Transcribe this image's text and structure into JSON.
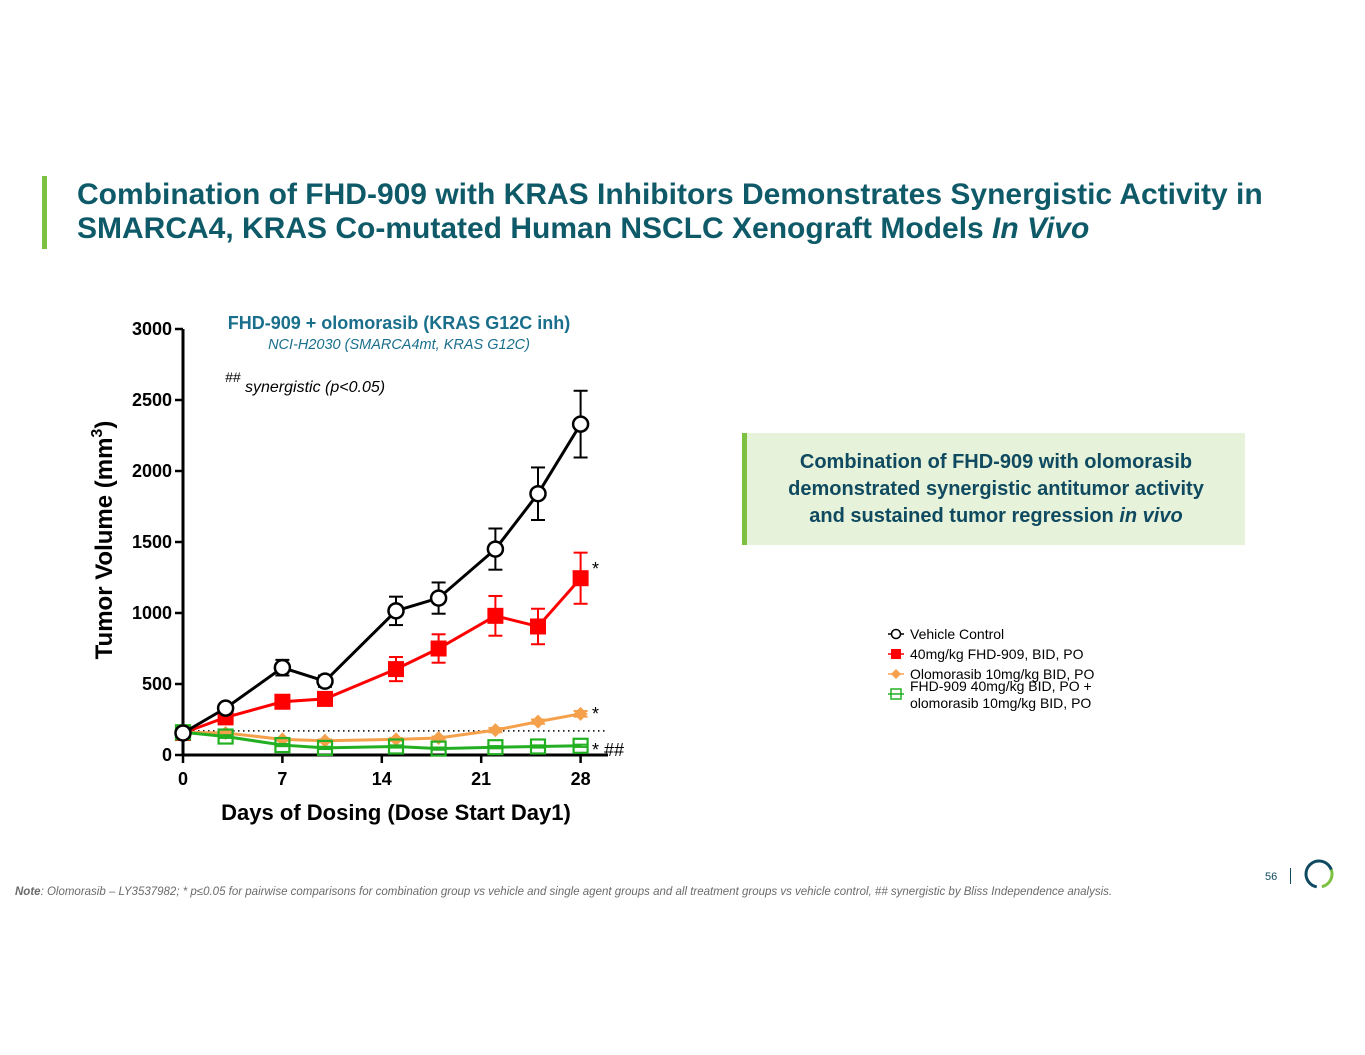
{
  "slide": {
    "title_line1": "Combination of FHD-909 with KRAS Inhibitors Demonstrates Synergistic Activity in",
    "title_line2": "SMARCA4, KRAS Co-mutated Human NSCLC Xenograft Models ",
    "title_line2_italic": "In Vivo",
    "callout_line1": "Combination of FHD-909 with olomorasib",
    "callout_line2": "demonstrated synergistic antitumor activity",
    "callout_line3": "and sustained tumor regression ",
    "callout_line3_italic": "in vivo",
    "note_label": "Note",
    "note_text": ": Olomorasib – LY3537982; * p≤0.05 for pairwise comparisons for combination group vs vehicle and single agent groups and all treatment groups vs vehicle control, ## synergistic by Bliss Independence analysis.",
    "page_number": "56"
  },
  "chart_data": {
    "type": "line",
    "title": "FHD-909 + olomorasib (KRAS G12C inh)",
    "subtitle": "NCI-H2030 (SMARCA4mt, KRAS G12C)",
    "annotation_prefix": "##",
    "annotation": "synergistic (p<0.05)",
    "xlabel": "Days of Dosing (Dose Start Day1)",
    "ylabel": "Tumor Volume (mm",
    "ylabel_sup": "3",
    "ylabel_close": ")",
    "xlim": [
      0,
      30
    ],
    "ylim": [
      0,
      3000
    ],
    "xticks": [
      0,
      7,
      14,
      21,
      28
    ],
    "yticks": [
      0,
      500,
      1000,
      1500,
      2000,
      2500,
      3000
    ],
    "reference_line": 170,
    "series": [
      {
        "name": "Vehicle Control",
        "color": "#000000",
        "marker": "circle-open",
        "x": [
          0,
          3,
          7,
          10,
          15,
          18,
          22,
          25,
          28
        ],
        "y": [
          155,
          330,
          615,
          520,
          1015,
          1105,
          1450,
          1840,
          2330
        ],
        "err": [
          30,
          30,
          55,
          40,
          100,
          110,
          145,
          185,
          235
        ],
        "significance": ""
      },
      {
        "name": "40mg/kg FHD-909, BID, PO",
        "color": "#ff0000",
        "marker": "square-filled",
        "x": [
          0,
          3,
          7,
          10,
          15,
          18,
          22,
          25,
          28
        ],
        "y": [
          155,
          265,
          375,
          395,
          605,
          750,
          980,
          905,
          1245
        ],
        "err": [
          25,
          25,
          30,
          30,
          85,
          100,
          140,
          125,
          180
        ],
        "significance": "*"
      },
      {
        "name": "Olomorasib 10mg/kg BID, PO",
        "color": "#f5a04a",
        "marker": "diamond-filled",
        "x": [
          0,
          3,
          7,
          10,
          15,
          18,
          22,
          25,
          28
        ],
        "y": [
          160,
          155,
          110,
          100,
          110,
          120,
          175,
          235,
          290
        ],
        "err": [
          15,
          15,
          10,
          10,
          10,
          10,
          15,
          15,
          20
        ],
        "significance": "*"
      },
      {
        "name": "FHD-909 40mg/kg BID, PO +\nolomorasib 10mg/kg BID, PO",
        "name_line1": "FHD-909 40mg/kg BID, PO +",
        "name_line2": "olomorasib 10mg/kg BID, PO",
        "color": "#22b022",
        "marker": "square-open",
        "x": [
          0,
          3,
          7,
          10,
          15,
          18,
          22,
          25,
          28
        ],
        "y": [
          160,
          130,
          70,
          50,
          60,
          45,
          55,
          60,
          65
        ],
        "err": [
          10,
          10,
          8,
          8,
          8,
          8,
          8,
          8,
          8
        ],
        "significance": "* ##"
      }
    ],
    "legend_position": "right"
  }
}
